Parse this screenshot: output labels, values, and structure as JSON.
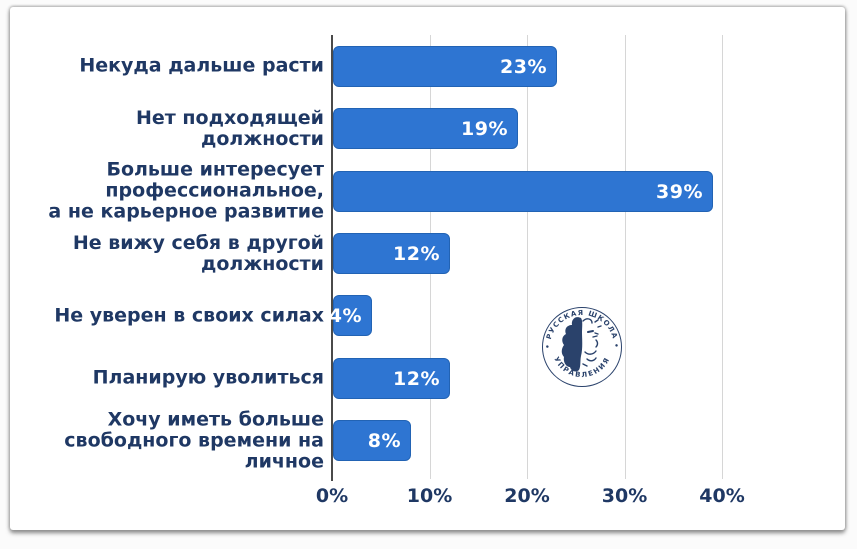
{
  "card": {
    "name": "survey-chart-card"
  },
  "watermark": {
    "top_text": "• РУССКАЯ ШКОЛА •",
    "bottom_text": "УПРАВЛЕНИЯ"
  },
  "chart_data": {
    "type": "bar",
    "orientation": "horizontal",
    "title": "",
    "xlabel": "",
    "ylabel": "",
    "categories": [
      "Некуда дальше расти",
      "Нет подходящей\nдолжности",
      "Больше интересует\nпрофессиональное,\nа не карьерное развитие",
      "Не вижу себя в другой\nдолжности",
      "Не уверен в своих силах",
      "Планирую уволиться",
      "Хочу иметь больше\nсвободного времени на\nличное"
    ],
    "values": [
      23,
      19,
      39,
      12,
      4,
      12,
      8
    ],
    "value_labels": [
      "23%",
      "19%",
      "39%",
      "12%",
      "4%",
      "12%",
      "8%"
    ],
    "x_ticks": [
      {
        "label": "0%",
        "value": 0
      },
      {
        "label": "10%",
        "value": 10
      },
      {
        "label": "20%",
        "value": 20
      },
      {
        "label": "30%",
        "value": 30
      },
      {
        "label": "40%",
        "value": 40
      }
    ],
    "xlim": [
      0,
      45
    ],
    "grid": true,
    "legend": false,
    "colors": {
      "bar": "#2E75D2",
      "bar_border": "#2263B4",
      "value_text": "#FFFFFF",
      "category_text": "#1F3864",
      "tick_text": "#1F3864",
      "gridline": "#D6D6D6",
      "axis_line": "#4A4A4A",
      "watermark": "#1F3864"
    }
  }
}
